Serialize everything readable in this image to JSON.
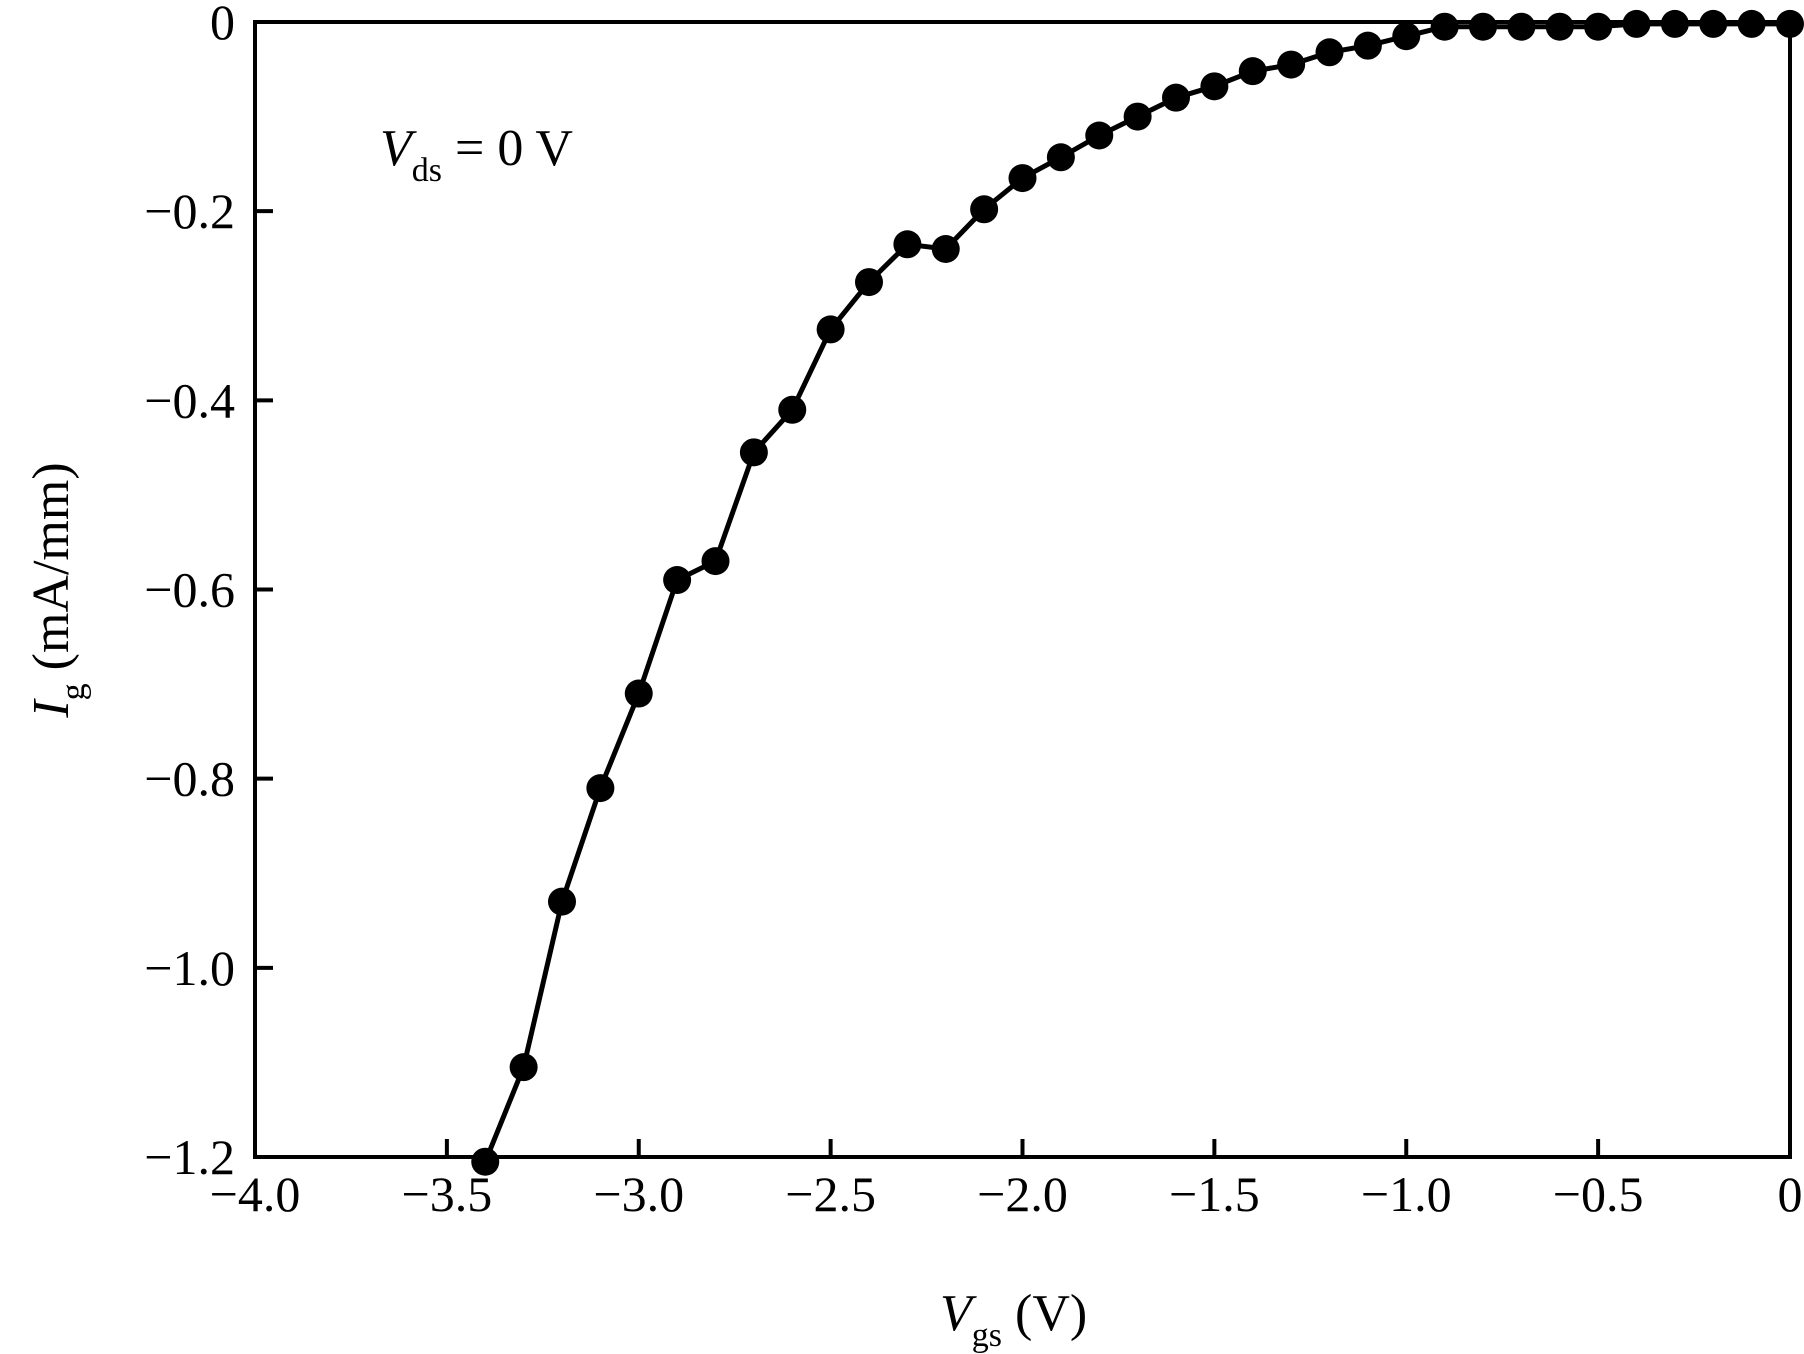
{
  "chart_data": {
    "type": "line",
    "x_tick_labels": [
      "−4.0",
      "−3.5",
      "−3.0",
      "−2.5",
      "−2.0",
      "−1.5",
      "−1.0",
      "−0.5",
      "0"
    ],
    "y_tick_labels": [
      "0",
      "−0.2",
      "−0.4",
      "−0.6",
      "−0.8",
      "−1.0",
      "−1.2"
    ],
    "x_ticks": [
      -4.0,
      -3.5,
      -3.0,
      -2.5,
      -2.0,
      -1.5,
      -1.0,
      -0.5,
      0
    ],
    "y_ticks": [
      0,
      -0.2,
      -0.4,
      -0.6,
      -0.8,
      -1.0,
      -1.2
    ],
    "xlim": [
      -4.0,
      0
    ],
    "ylim": [
      -1.2,
      0
    ],
    "xlabel": {
      "main": "V",
      "sub": "gs",
      "unit": " (V)"
    },
    "ylabel": {
      "main": "I",
      "sub": "g",
      "unit": " (mA/mm)"
    },
    "annotation": {
      "main": "V",
      "sub": "ds",
      "rest": " = 0 V"
    },
    "grid": false,
    "series": [
      {
        "color": "#000000",
        "x": [
          -3.4,
          -3.3,
          -3.2,
          -3.1,
          -3.0,
          -2.9,
          -2.8,
          -2.7,
          -2.6,
          -2.5,
          -2.4,
          -2.3,
          -2.2,
          -2.1,
          -2.0,
          -1.9,
          -1.8,
          -1.7,
          -1.6,
          -1.5,
          -1.4,
          -1.3,
          -1.2,
          -1.1,
          -1.0,
          -0.9,
          -0.8,
          -0.7,
          -0.6,
          -0.5,
          -0.4,
          -0.3,
          -0.2,
          -0.1,
          0.0
        ],
        "y": [
          -1.205,
          -1.105,
          -0.93,
          -0.81,
          -0.71,
          -0.59,
          -0.57,
          -0.455,
          -0.41,
          -0.325,
          -0.275,
          -0.235,
          -0.24,
          -0.198,
          -0.165,
          -0.143,
          -0.12,
          -0.1,
          -0.08,
          -0.068,
          -0.052,
          -0.045,
          -0.032,
          -0.025,
          -0.015,
          -0.005,
          -0.005,
          -0.005,
          -0.005,
          -0.005,
          -0.002,
          -0.002,
          -0.002,
          -0.002,
          -0.002
        ]
      }
    ]
  }
}
